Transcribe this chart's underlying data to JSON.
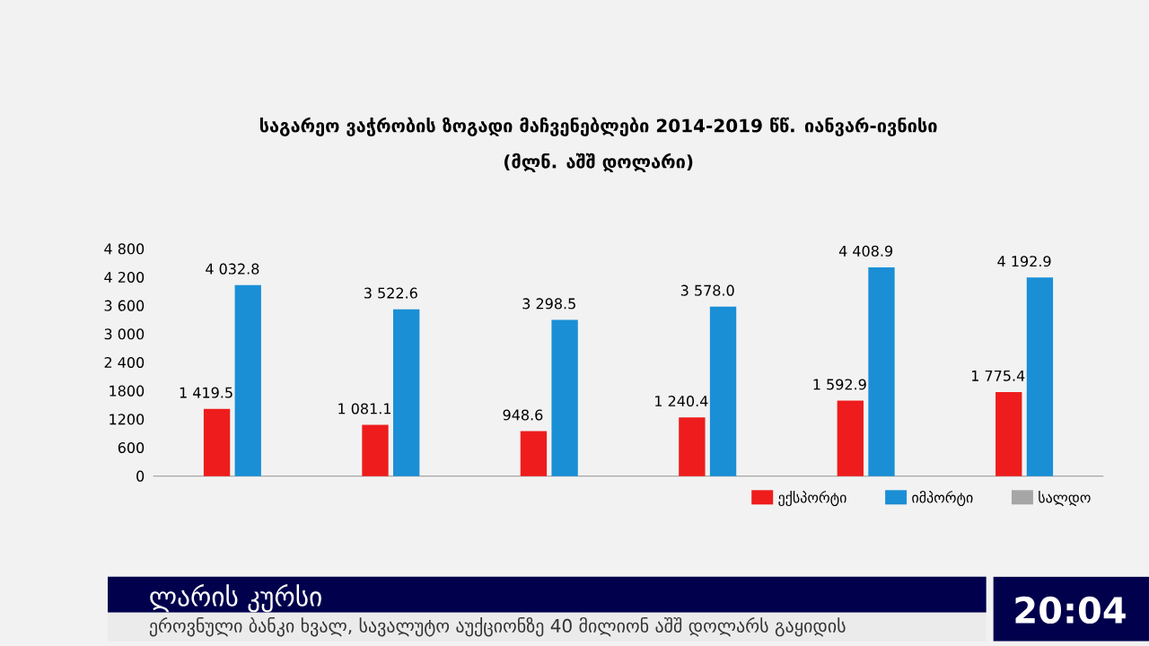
{
  "chart_data": {
    "type": "bar",
    "title": "საგარეო ვაჭრობის ზოგადი მაჩვენებლები 2014-2019 წწ. იანვარ-ივნისი",
    "subtitle": "(მლნ. აშშ დოლარი)",
    "categories": [
      null,
      null,
      null,
      null,
      null,
      null
    ],
    "series": [
      {
        "name": "ექსპორტი",
        "color": "#ee1c1c",
        "values": [
          1419.5,
          1081.1,
          948.6,
          1240.4,
          1592.9,
          1775.4
        ],
        "value_labels": [
          "1 419.5",
          "1 081.1",
          "948.6",
          "1 240.4",
          "1 592.9",
          "1 775.4"
        ]
      },
      {
        "name": "იმპორტი",
        "color": "#1a8fd6",
        "values": [
          4032.8,
          3522.6,
          3298.5,
          3578.0,
          4408.9,
          4192.9
        ],
        "value_labels": [
          "4 032.8",
          "3 522.6",
          "3 298.5",
          "3 578.0",
          "4 408.9",
          "4 192.9"
        ]
      },
      {
        "name": "სალდო",
        "color": "#a6a6a6",
        "values": [
          null,
          null,
          null,
          null,
          null,
          null
        ]
      }
    ],
    "ylim": [
      0,
      4800
    ],
    "yticks": [
      0,
      600,
      1200,
      1800,
      {
        "value": 2400,
        "label": "2 400"
      },
      {
        "value": 3000,
        "label": "3 000"
      },
      {
        "value": 3600,
        "label": "3 600"
      },
      {
        "value": 4200,
        "label": "4 200"
      },
      {
        "value": 4800,
        "label": "4 800"
      }
    ],
    "grid": false,
    "legend": "bottom right",
    "tick_labels": "y",
    "annotations": [
      "ლარის კურსი",
      "ეროვნული ბანკი ხვალ, სავალუტო აუქციონზე 40 მილიონ აშშ დოლარს გაყიდის",
      "20:04"
    ]
  }
}
